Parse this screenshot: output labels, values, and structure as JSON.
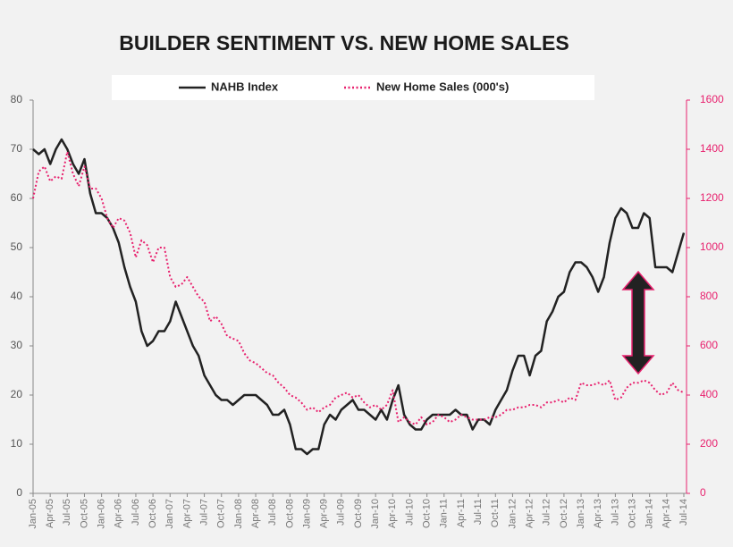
{
  "chart_data": {
    "type": "line",
    "title": "BUILDER SENTIMENT VS. NEW HOME SALES",
    "legend": "top",
    "categories": [
      "Jan-05",
      null,
      null,
      "Apr-05",
      null,
      null,
      "Jul-05",
      null,
      null,
      "Oct-05",
      null,
      null,
      "Jan-06",
      null,
      null,
      "Apr-06",
      null,
      null,
      "Jul-06",
      null,
      null,
      "Oct-06",
      null,
      null,
      "Jan-07",
      null,
      null,
      "Apr-07",
      null,
      null,
      "Jul-07",
      null,
      null,
      "Oct-07",
      null,
      null,
      "Jan-08",
      null,
      null,
      "Apr-08",
      null,
      null,
      "Jul-08",
      null,
      null,
      "Oct-08",
      null,
      null,
      "Jan-09",
      null,
      null,
      "Apr-09",
      null,
      null,
      "Jul-09",
      null,
      null,
      "Oct-09",
      null,
      null,
      "Jan-10",
      null,
      null,
      "Apr-10",
      null,
      null,
      "Jul-10",
      null,
      null,
      "Oct-10",
      null,
      null,
      "Jan-11",
      null,
      null,
      "Apr-11",
      null,
      null,
      "Jul-11",
      null,
      null,
      "Oct-11",
      null,
      null,
      "Jan-12",
      null,
      null,
      "Apr-12",
      null,
      null,
      "Jul-12",
      null,
      null,
      "Oct-12",
      null,
      null,
      "Jan-13",
      null,
      null,
      "Apr-13",
      null,
      null,
      "Jul-13",
      null,
      null,
      "Oct-13",
      null,
      null,
      "Jan-14",
      null,
      null,
      "Apr-14",
      null,
      null,
      "Jul-14"
    ],
    "series": [
      {
        "name": "NAHB Index",
        "color": "#222222",
        "dash": false,
        "values": [
          70,
          69,
          70,
          67,
          70,
          72,
          70,
          67,
          65,
          68,
          61,
          57,
          57,
          56,
          54,
          51,
          46,
          42,
          39,
          33,
          30,
          31,
          33,
          33,
          35,
          39,
          36,
          33,
          30,
          28,
          24,
          22,
          20,
          19,
          19,
          18,
          19,
          20,
          20,
          20,
          19,
          18,
          16,
          16,
          17,
          14,
          9,
          9,
          8,
          9,
          9,
          14,
          16,
          15,
          17,
          18,
          19,
          17,
          17,
          16,
          15,
          17,
          15,
          19,
          22,
          16,
          14,
          13,
          13,
          15,
          16,
          16,
          16,
          16,
          17,
          16,
          16,
          13,
          15,
          15,
          14,
          17,
          19,
          21,
          25,
          28,
          28,
          24,
          28,
          29,
          35,
          37,
          40,
          41,
          45,
          47,
          47,
          46,
          44,
          41,
          44,
          51,
          56,
          58,
          57,
          54,
          54,
          57,
          56,
          46,
          46,
          46,
          45,
          49,
          53
        ]
      },
      {
        "name": "New Home Sales (000's)",
        "color": "#e8216e",
        "dash": true,
        "axis": "y2",
        "values": [
          1200,
          1310,
          1330,
          1270,
          1290,
          1280,
          1390,
          1300,
          1250,
          1330,
          1240,
          1240,
          1200,
          1120,
          1080,
          1120,
          1110,
          1060,
          960,
          1030,
          1010,
          940,
          1000,
          1000,
          880,
          840,
          850,
          880,
          840,
          800,
          780,
          700,
          720,
          690,
          640,
          630,
          620,
          570,
          540,
          530,
          510,
          490,
          480,
          450,
          430,
          400,
          390,
          370,
          340,
          350,
          330,
          350,
          360,
          390,
          400,
          410,
          390,
          400,
          370,
          350,
          360,
          340,
          360,
          420,
          290,
          310,
          290,
          280,
          310,
          280,
          290,
          320,
          310,
          290,
          300,
          320,
          310,
          300,
          300,
          300,
          310,
          310,
          320,
          340,
          340,
          350,
          350,
          360,
          360,
          350,
          370,
          370,
          380,
          370,
          390,
          380,
          450,
          440,
          440,
          450,
          440,
          460,
          380,
          390,
          430,
          450,
          450,
          460,
          450,
          420,
          400,
          410,
          450,
          420,
          410
        ]
      }
    ],
    "ylim": [
      0,
      80
    ],
    "yticks": [
      0,
      10,
      20,
      30,
      40,
      50,
      60,
      70,
      80
    ],
    "y2lim": [
      0,
      1600
    ],
    "y2ticks": [
      0,
      200,
      400,
      600,
      800,
      1000,
      1200,
      1400,
      1600
    ]
  }
}
